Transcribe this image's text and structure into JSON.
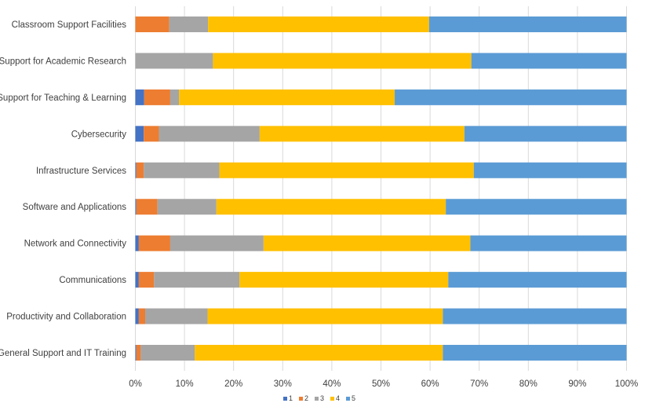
{
  "chart_data": {
    "type": "bar",
    "orientation": "horizontal",
    "stacked": "percent",
    "categories": [
      "Classroom Support Facilities",
      "Support for Academic Research",
      "Support for Teaching & Learning",
      "Cybersecurity",
      "Infrastructure Services",
      "Software and Applications",
      "Network and Connectivity",
      "Communications",
      "Productivity and Collaboration",
      "General Support and IT Training"
    ],
    "series": [
      {
        "name": "1",
        "color": "#4472C4",
        "values": [
          0.0,
          0.0,
          1.8,
          1.7,
          0.2,
          0.2,
          0.7,
          0.7,
          0.7,
          0.2
        ]
      },
      {
        "name": "2",
        "color": "#ED7D31",
        "values": [
          6.9,
          0.0,
          5.3,
          3.1,
          1.5,
          4.3,
          6.4,
          3.1,
          1.3,
          0.9
        ]
      },
      {
        "name": "3",
        "color": "#A5A5A5",
        "values": [
          7.9,
          15.8,
          1.8,
          20.5,
          15.4,
          12.0,
          19.0,
          17.4,
          12.7,
          11.0
        ]
      },
      {
        "name": "4",
        "color": "#FFC000",
        "values": [
          45.0,
          52.6,
          43.9,
          41.7,
          51.8,
          46.7,
          42.1,
          42.5,
          47.9,
          50.5
        ]
      },
      {
        "name": "5",
        "color": "#5B9BD5",
        "values": [
          40.2,
          31.6,
          47.2,
          33.0,
          31.1,
          36.8,
          31.8,
          36.3,
          37.4,
          37.4
        ]
      }
    ],
    "xlim": [
      0,
      100
    ],
    "x_ticks": [
      "0%",
      "10%",
      "20%",
      "30%",
      "40%",
      "50%",
      "60%",
      "70%",
      "80%",
      "90%",
      "100%"
    ],
    "grid": true,
    "legend_position": "bottom",
    "title": "",
    "xlabel": "",
    "ylabel": ""
  }
}
